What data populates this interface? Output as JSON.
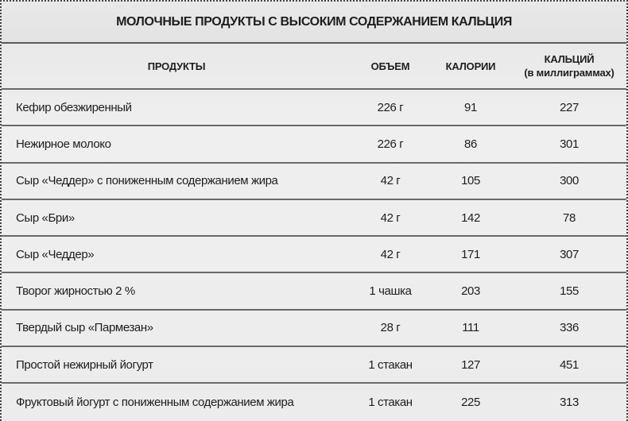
{
  "title": "МОЛОЧНЫЕ ПРОДУКТЫ С ВЫСОКИМ СОДЕРЖАНИЕМ КАЛЬЦИЯ",
  "columns": [
    "ПРОДУКТЫ",
    "ОБЪЕМ",
    "КАЛОРИИ",
    "КАЛЬЦИЙ",
    "(в миллиграммах)"
  ],
  "rows": [
    [
      "Кефир обезжиренный",
      "226 г",
      "91",
      "227"
    ],
    [
      "Нежирное молоко",
      "226 г",
      "86",
      "301"
    ],
    [
      "Сыр «Чеддер» с пониженным содержанием жира",
      "42 г",
      "105",
      "300"
    ],
    [
      "Сыр «Бри»",
      "42 г",
      "142",
      "78"
    ],
    [
      "Сыр «Чеддер»",
      "42 г",
      "171",
      "307"
    ],
    [
      "Творог жирностью 2 %",
      "1 чашка",
      "203",
      "155"
    ],
    [
      "Твердый сыр «Пармезан»",
      "28 г",
      "111",
      "336"
    ],
    [
      "Простой нежирный йогурт",
      "1 стакан",
      "127",
      "451"
    ],
    [
      "Фруктовый йогурт с пониженным содержанием жира",
      "1 стакан",
      "225",
      "313"
    ]
  ]
}
